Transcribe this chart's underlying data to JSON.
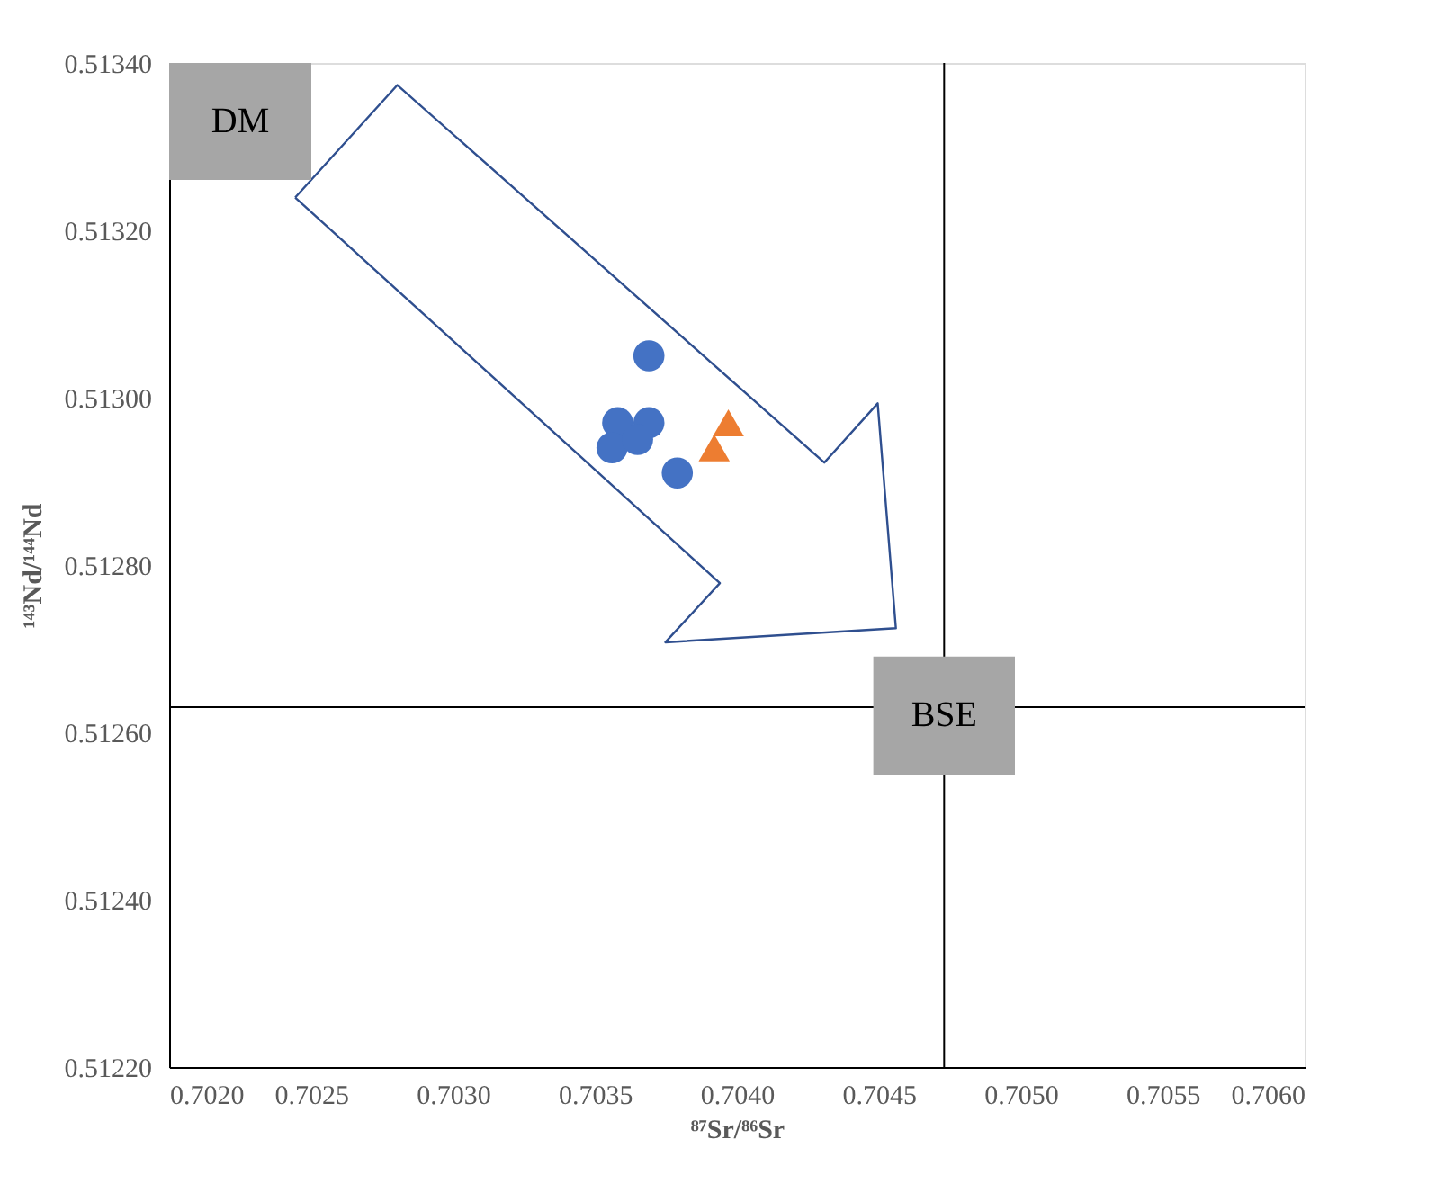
{
  "chart_data": {
    "type": "scatter",
    "xlabel": "⁸⁷Sr/⁸⁶Sr",
    "ylabel": "¹⁴³Nd/¹⁴⁴Nd",
    "xlim": [
      0.702,
      0.706
    ],
    "xticks": [
      {
        "value": 0.702,
        "label": "0.7020"
      },
      {
        "value": 0.7025,
        "label": "0.7025"
      },
      {
        "value": 0.703,
        "label": "0.7030"
      },
      {
        "value": 0.7035,
        "label": "0.7035"
      },
      {
        "value": 0.704,
        "label": "0.7040"
      },
      {
        "value": 0.7045,
        "label": "0.7045"
      },
      {
        "value": 0.705,
        "label": "0.7050"
      },
      {
        "value": 0.7055,
        "label": "0.7055"
      },
      {
        "value": 0.706,
        "label": "0.7060"
      }
    ],
    "ylim": [
      0.5122,
      0.5134
    ],
    "yticks": [
      {
        "value": 0.5122,
        "label": "0.51220"
      },
      {
        "value": 0.5124,
        "label": "0.51240"
      },
      {
        "value": 0.5126,
        "label": "0.51260"
      },
      {
        "value": 0.5128,
        "label": "0.51280"
      },
      {
        "value": 0.513,
        "label": "0.51300"
      },
      {
        "value": 0.5132,
        "label": "0.51320"
      },
      {
        "value": 0.5134,
        "label": "0.51340"
      }
    ],
    "series": [
      {
        "color": "#4472c4",
        "marker": "circle",
        "x": [
          0.70369,
          0.70358,
          0.70369,
          0.70356,
          0.70365,
          0.70379
        ],
        "values": [
          0.51305,
          0.51297,
          0.51297,
          0.51294,
          0.51295,
          0.51291
        ]
      },
      {
        "color": "#ed7d31",
        "marker": "triangle",
        "x": [
          0.70397,
          0.70392
        ],
        "values": [
          0.51297,
          0.51294
        ]
      }
    ],
    "ref_lines": [
      {
        "axis": "x",
        "value": 0.70473,
        "color": "#000000"
      },
      {
        "axis": "y",
        "value": 0.51263,
        "color": "#000000"
      }
    ],
    "annotations": [
      "DM",
      {
        "text": "BSE",
        "x": 0.70473,
        "y": 0.51262
      }
    ],
    "grid": false
  }
}
